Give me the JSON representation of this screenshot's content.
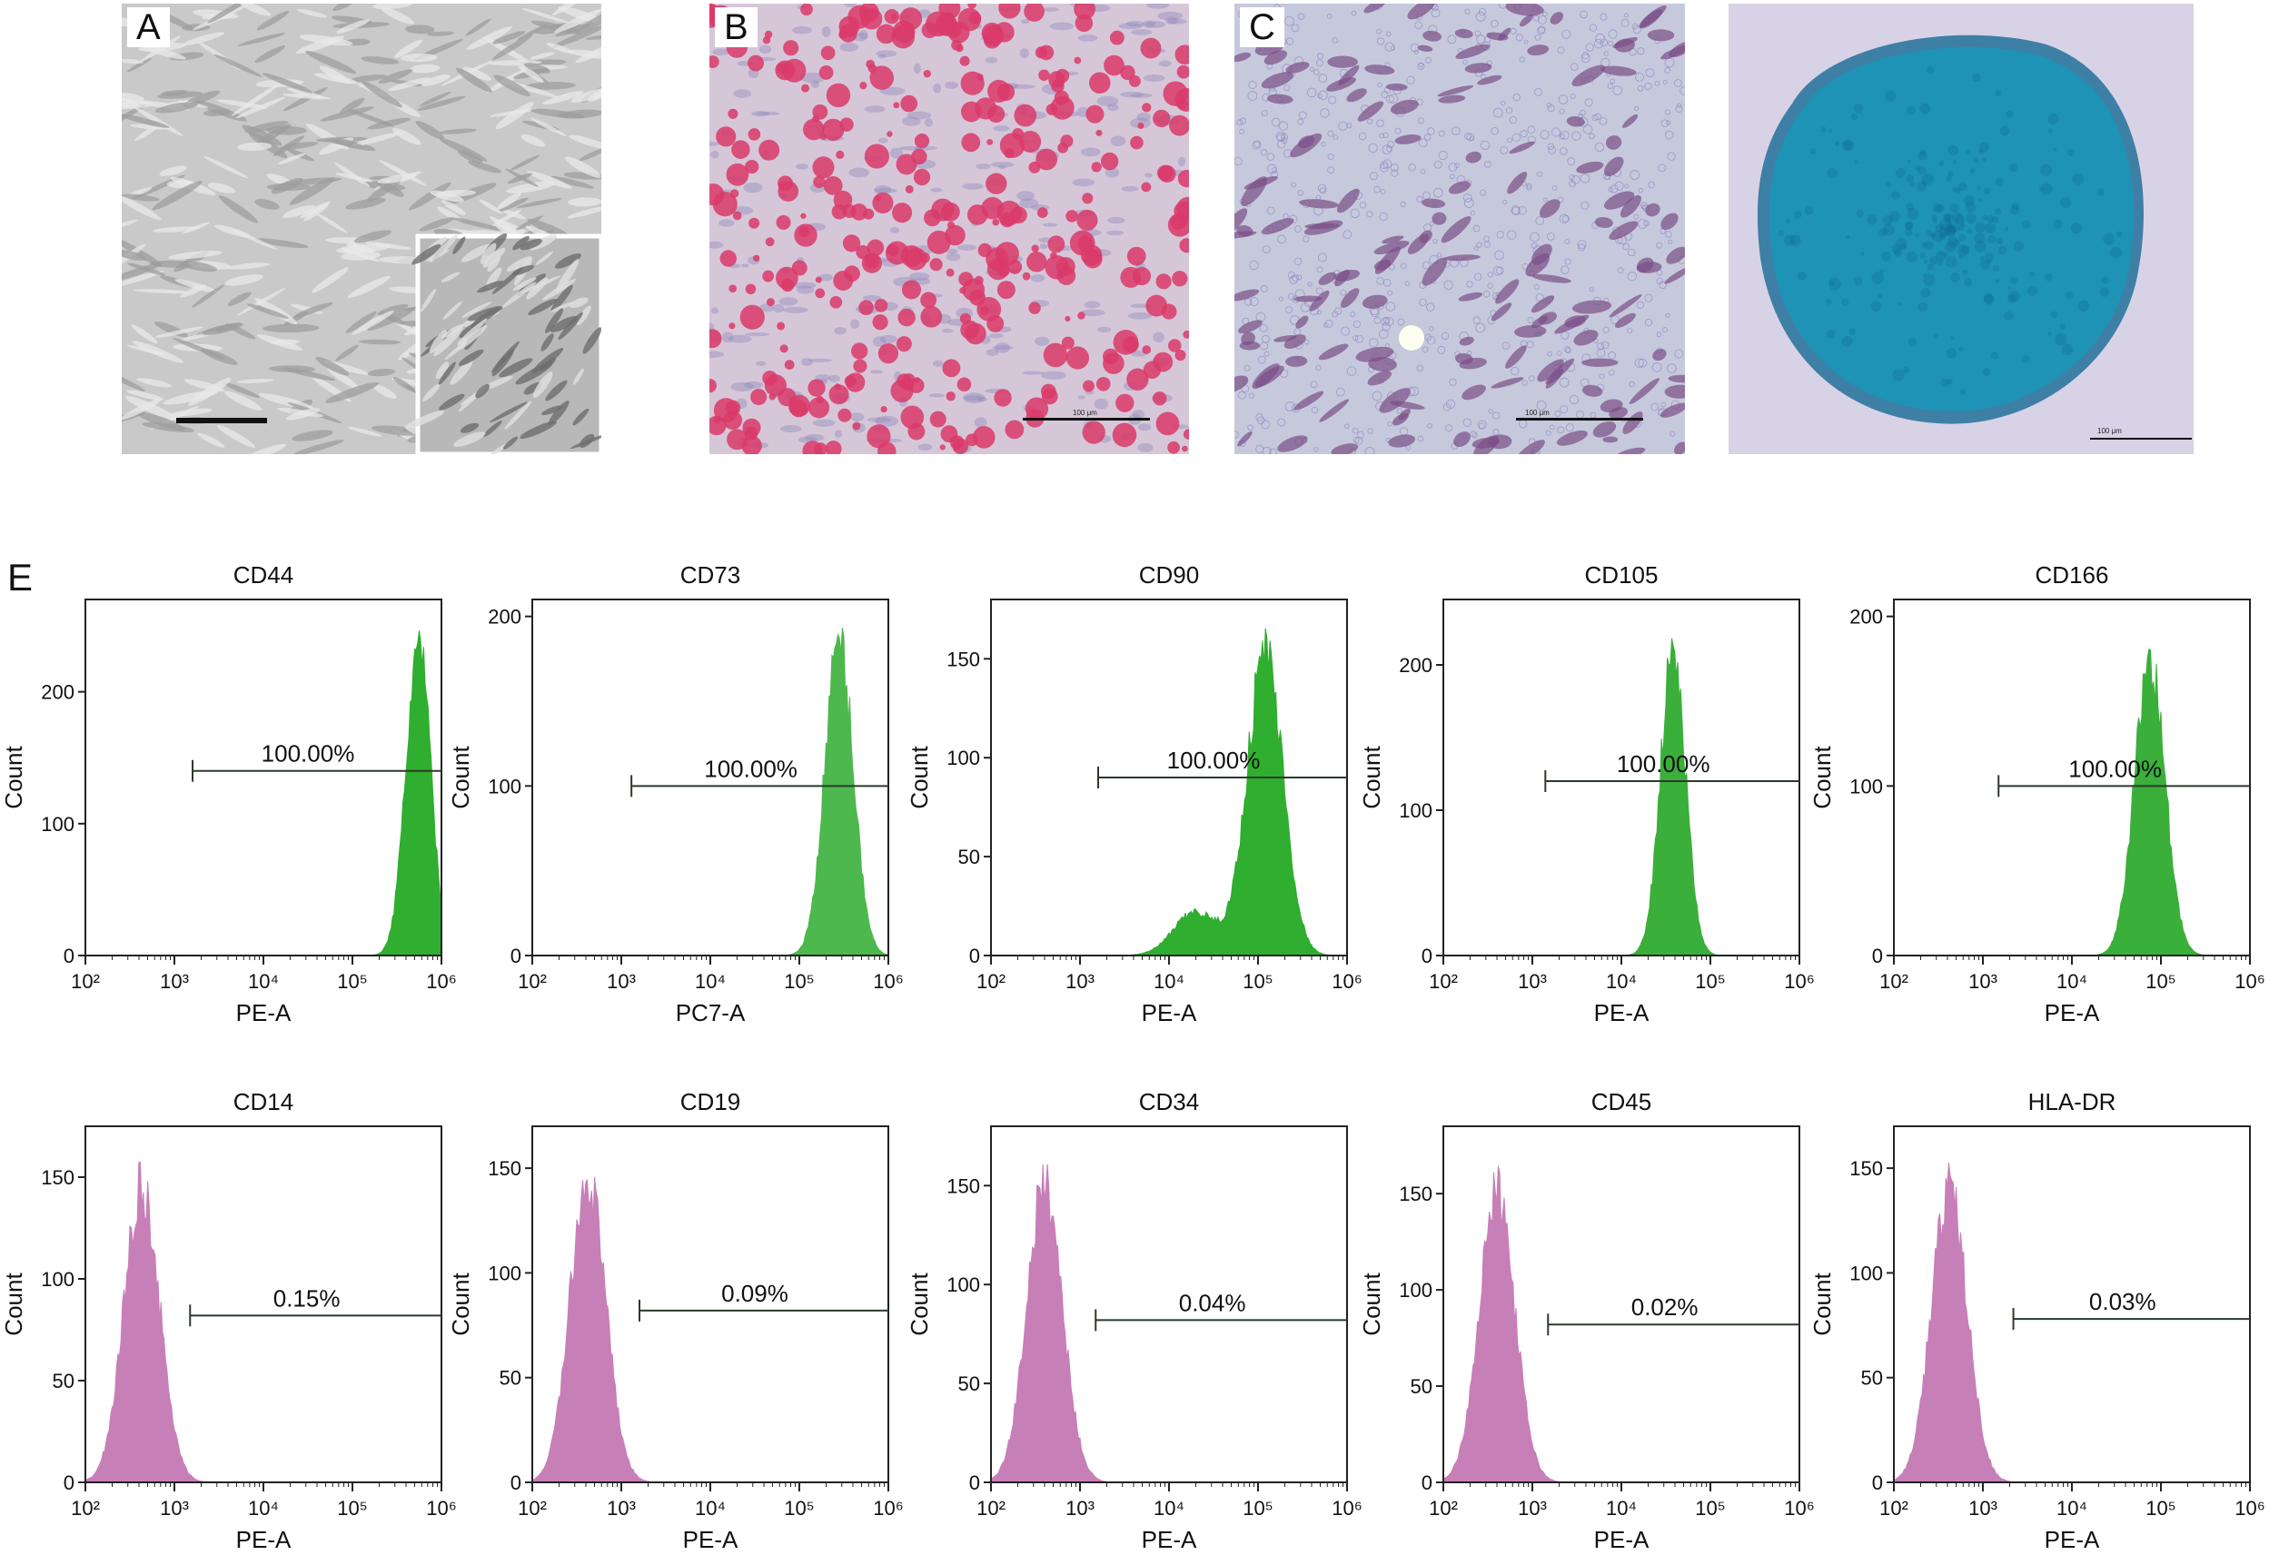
{
  "figure": {
    "panels": [
      {
        "letter": "A",
        "stain_color": "#c9c9c9",
        "scale_label": ""
      },
      {
        "letter": "B",
        "stain_color": "#d93a6a",
        "scale_label": "100 μm"
      },
      {
        "letter": "C",
        "stain_color": "#7a4e86",
        "scale_label": "100 μm"
      },
      {
        "letter": "",
        "stain_color": "#1e93b5",
        "scale_label": "100 μm"
      }
    ],
    "e_label": "E"
  },
  "chart_data": [
    {
      "type": "histogram",
      "title": "CD44",
      "xlabel": "PE-A",
      "ylabel": "Count",
      "xscale": "log",
      "xlim": [
        100,
        1000000
      ],
      "ylim": [
        0,
        270
      ],
      "yticks": [
        0,
        100,
        200
      ],
      "gate_label": "100.00%",
      "gate_x": [
        1600,
        1000000
      ],
      "gate_y": 140,
      "peak_x": 550000,
      "peak_y": 235,
      "spread": 0.14,
      "color": "#2fae2f"
    },
    {
      "type": "histogram",
      "title": "CD73",
      "xlabel": "PC7-A",
      "ylabel": "Count",
      "xscale": "log",
      "xlim": [
        100,
        1000000
      ],
      "ylim": [
        0,
        210
      ],
      "yticks": [
        0,
        100,
        200
      ],
      "gate_label": "100.00%",
      "gate_x": [
        1300,
        1000000
      ],
      "gate_y": 100,
      "peak_x": 280000,
      "peak_y": 185,
      "spread": 0.16,
      "color": "#4db84d"
    },
    {
      "type": "histogram",
      "title": "CD90",
      "xlabel": "PE-A",
      "ylabel": "Count",
      "xscale": "log",
      "xlim": [
        100,
        1000000
      ],
      "ylim": [
        0,
        180
      ],
      "yticks": [
        0,
        50,
        100,
        150
      ],
      "gate_label": "100.00%",
      "gate_x": [
        1600,
        1000000
      ],
      "gate_y": 90,
      "peak_x": 120000,
      "peak_y": 155,
      "spread": 0.2,
      "color": "#2fae2f"
    },
    {
      "type": "histogram",
      "title": "CD105",
      "xlabel": "PE-A",
      "ylabel": "Count",
      "xscale": "log",
      "xlim": [
        100,
        1000000
      ],
      "ylim": [
        0,
        245
      ],
      "yticks": [
        0,
        100,
        200
      ],
      "gate_label": "100.00%",
      "gate_x": [
        1400,
        1000000
      ],
      "gate_y": 120,
      "peak_x": 38000,
      "peak_y": 210,
      "spread": 0.14,
      "color": "#3aaf3a"
    },
    {
      "type": "histogram",
      "title": "CD166",
      "xlabel": "PE-A",
      "ylabel": "Count",
      "xscale": "log",
      "xlim": [
        100,
        1000000
      ],
      "ylim": [
        0,
        210
      ],
      "yticks": [
        0,
        100,
        200
      ],
      "gate_label": "100.00%",
      "gate_x": [
        1500,
        1000000
      ],
      "gate_y": 100,
      "peak_x": 75000,
      "peak_y": 175,
      "spread": 0.17,
      "color": "#3aaf3a"
    },
    {
      "type": "histogram",
      "title": "CD14",
      "xlabel": "PE-A",
      "ylabel": "Count",
      "xscale": "log",
      "xlim": [
        100,
        1000000
      ],
      "ylim": [
        0,
        175
      ],
      "yticks": [
        0,
        50,
        100,
        150
      ],
      "gate_label": "0.15%",
      "gate_x": [
        1500,
        1000000
      ],
      "gate_y": 82,
      "peak_x": 430,
      "peak_y": 145,
      "spread": 0.2,
      "color": "#c77fb8"
    },
    {
      "type": "histogram",
      "title": "CD19",
      "xlabel": "PE-A",
      "ylabel": "Count",
      "xscale": "log",
      "xlim": [
        100,
        1000000
      ],
      "ylim": [
        0,
        170
      ],
      "yticks": [
        0,
        50,
        100,
        150
      ],
      "gate_label": "0.09%",
      "gate_x": [
        1600,
        1000000
      ],
      "gate_y": 82,
      "peak_x": 420,
      "peak_y": 145,
      "spread": 0.2,
      "color": "#c77fb8"
    },
    {
      "type": "histogram",
      "title": "CD34",
      "xlabel": "PE-A",
      "ylabel": "Count",
      "xscale": "log",
      "xlim": [
        100,
        1000000
      ],
      "ylim": [
        0,
        180
      ],
      "yticks": [
        0,
        50,
        100,
        150
      ],
      "gate_label": "0.04%",
      "gate_x": [
        1500,
        1000000
      ],
      "gate_y": 82,
      "peak_x": 400,
      "peak_y": 150,
      "spread": 0.2,
      "color": "#c77fb8"
    },
    {
      "type": "histogram",
      "title": "CD45",
      "xlabel": "PE-A",
      "ylabel": "Count",
      "xscale": "log",
      "xlim": [
        100,
        1000000
      ],
      "ylim": [
        0,
        185
      ],
      "yticks": [
        0,
        50,
        100,
        150
      ],
      "gate_label": "0.02%",
      "gate_x": [
        1500,
        1000000
      ],
      "gate_y": 82,
      "peak_x": 400,
      "peak_y": 150,
      "spread": 0.2,
      "color": "#c77fb8"
    },
    {
      "type": "histogram",
      "title": "HLA-DR",
      "xlabel": "PE-A",
      "ylabel": "Count",
      "xscale": "log",
      "xlim": [
        100,
        1000000
      ],
      "ylim": [
        0,
        170
      ],
      "yticks": [
        0,
        50,
        100,
        150
      ],
      "gate_label": "0.03%",
      "gate_x": [
        2200,
        1000000
      ],
      "gate_y": 78,
      "peak_x": 420,
      "peak_y": 140,
      "spread": 0.2,
      "color": "#c77fb8"
    }
  ]
}
